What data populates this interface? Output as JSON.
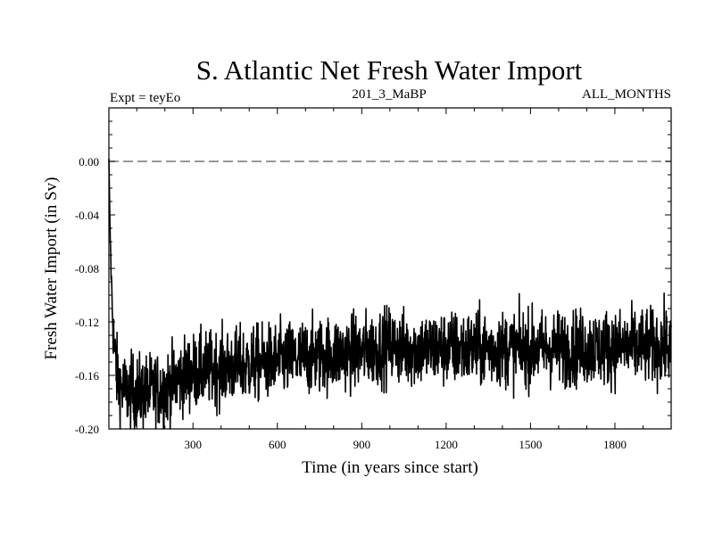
{
  "chart_data": {
    "type": "line",
    "title": "S. Atlantic Net Fresh Water Import",
    "subtitle_left": "Expt = teyEo",
    "subtitle_center": "201_3_MaBP",
    "subtitle_right": "ALL_MONTHS",
    "xlabel": "Time (in years since start)",
    "ylabel": "Fresh Water Import (in Sv)",
    "xlim": [
      1,
      2000
    ],
    "ylim": [
      -0.2,
      0.04
    ],
    "x_ticks": [
      300,
      600,
      900,
      1200,
      1500,
      1800
    ],
    "x_tick_labels": [
      "300",
      "600",
      "900",
      "1200",
      "1500",
      "1800"
    ],
    "y_ticks": [
      0.0,
      -0.04,
      -0.08,
      -0.12,
      -0.16,
      -0.2
    ],
    "y_tick_labels": [
      "0.00",
      "-0.04",
      "-0.08",
      "-0.12",
      "-0.16",
      "-0.20"
    ],
    "reference_line": {
      "y": 0.0,
      "style": "dashed"
    },
    "grid": false,
    "series": [
      {
        "name": "Net Fresh Water Import",
        "trend_x": [
          1,
          5,
          10,
          15,
          20,
          30,
          40,
          60,
          100,
          150,
          200,
          250,
          300,
          450,
          600,
          750,
          900,
          1000,
          1050,
          1200,
          1500,
          1800,
          2000
        ],
        "trend_y": [
          0.002,
          -0.05,
          -0.09,
          -0.12,
          -0.14,
          -0.16,
          -0.168,
          -0.172,
          -0.173,
          -0.172,
          -0.17,
          -0.162,
          -0.157,
          -0.153,
          -0.149,
          -0.145,
          -0.142,
          -0.137,
          -0.14,
          -0.14,
          -0.14,
          -0.139,
          -0.138
        ],
        "noise_amplitude": 0.014,
        "n_points": 2000
      }
    ]
  }
}
